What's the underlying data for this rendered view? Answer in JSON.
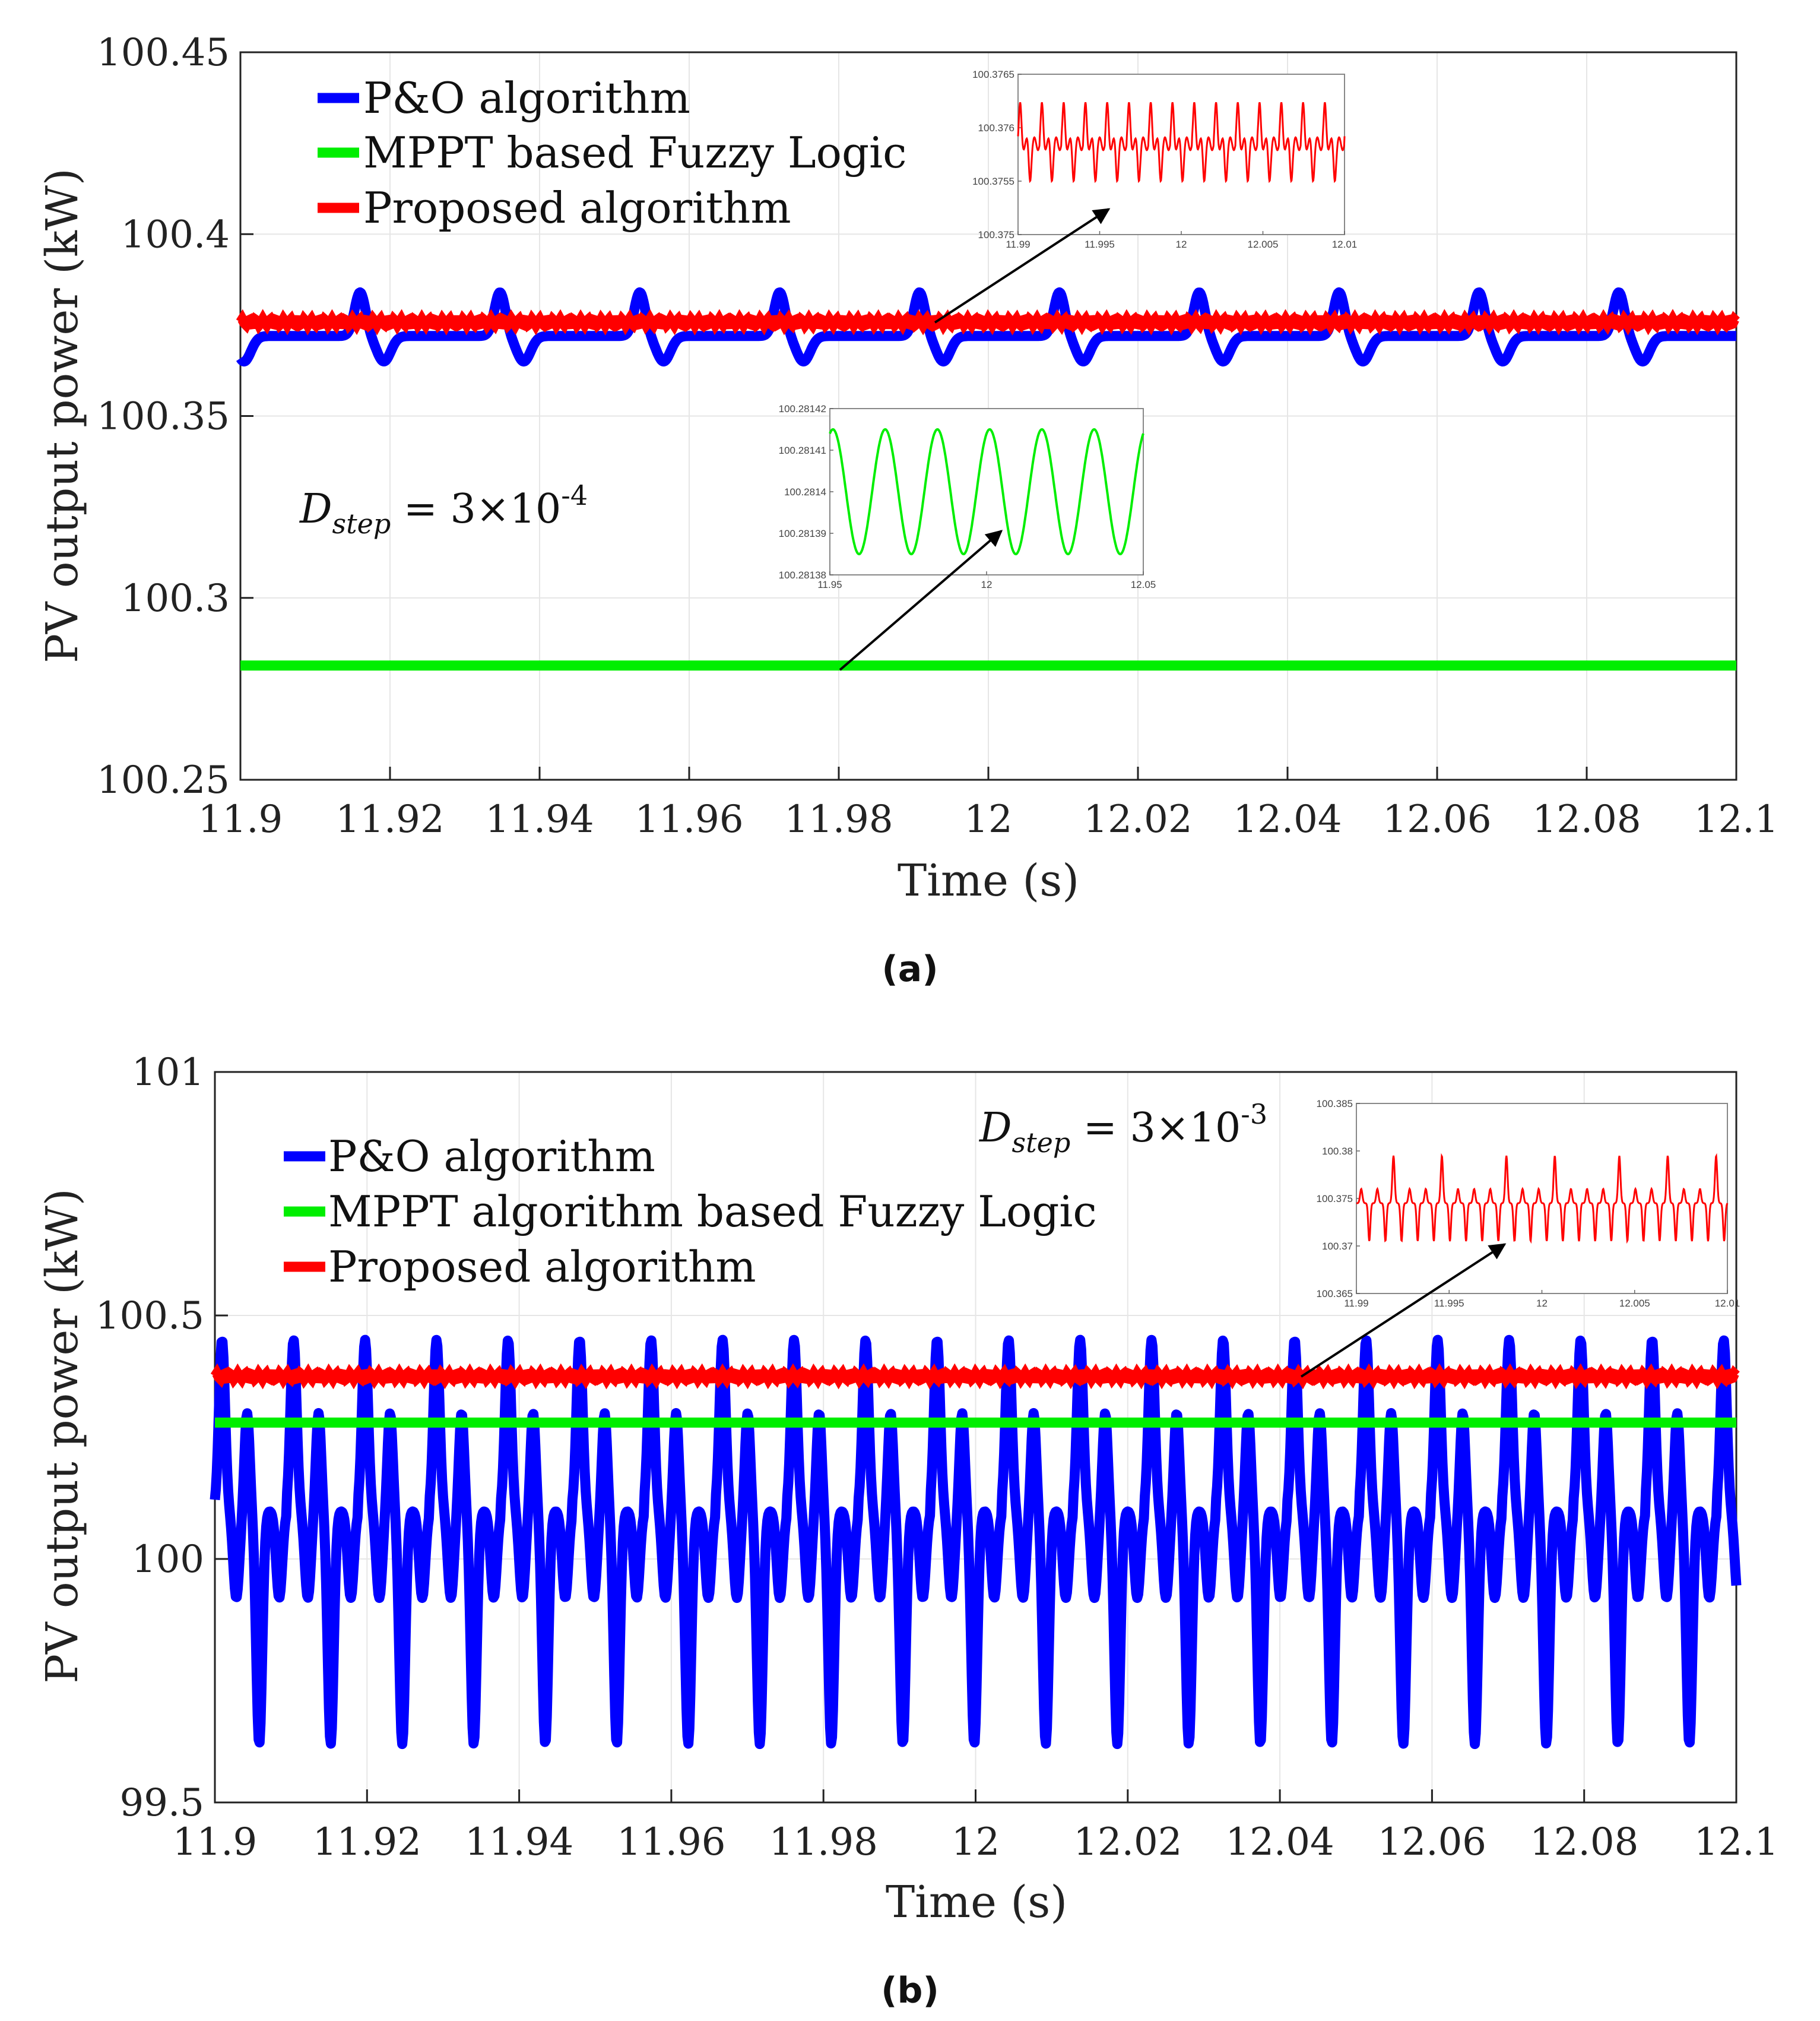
{
  "colors": {
    "po": "#0000ff",
    "fuzzy": "#00ee00",
    "proposed": "#ff0000",
    "grid": "#e6e6e6",
    "axis": "#222222",
    "arrow": "#000000"
  },
  "chart_data": [
    {
      "type": "line",
      "caption": "(a)",
      "xlabel": "Time (s)",
      "ylabel": "PV output power (kW)",
      "xlim": [
        11.9,
        12.1
      ],
      "ylim": [
        100.25,
        100.45
      ],
      "xticks": [
        "11.9",
        "11.92",
        "11.94",
        "11.96",
        "11.98",
        "12",
        "12.02",
        "12.04",
        "12.06",
        "12.08",
        "12.1"
      ],
      "yticks": [
        "100.25",
        "100.3",
        "100.35",
        "100.4",
        "100.45"
      ],
      "grid": true,
      "legend": [
        "P&O algorithm",
        "MPPT based Fuzzy Logic",
        "Proposed algorithm"
      ],
      "legend_position": "top-left",
      "annotation": {
        "symbol": "D",
        "subscript": "step",
        "value": " = 3×10",
        "exponent": "-4"
      },
      "series": [
        {
          "name": "P&O algorithm",
          "baseline": 100.372,
          "valley": 100.365,
          "peak": 100.384,
          "period": 0.0187,
          "first_peak": 11.916
        },
        {
          "name": "MPPT based Fuzzy Logic",
          "value": 100.2814
        },
        {
          "name": "Proposed algorithm",
          "value": 100.3758
        }
      ],
      "insets": [
        {
          "series": "Proposed algorithm",
          "xlim": [
            11.99,
            12.01
          ],
          "ylim": [
            100.375,
            100.3765
          ],
          "xticks": [
            "11.99",
            "11.995",
            "12",
            "12.005",
            "12.01"
          ],
          "yticks": [
            "100.375",
            "100.3755",
            "100.376",
            "100.3765"
          ],
          "arrow_from": [
            11.992,
            100.3758
          ],
          "arrow_to": [
            11.9956,
            100.37555
          ]
        },
        {
          "series": "MPPT based Fuzzy Logic",
          "xlim": [
            11.95,
            12.05
          ],
          "ylim": [
            100.28138,
            100.28142
          ],
          "xticks": [
            "11.95",
            "12",
            "12.05"
          ],
          "yticks": [
            "100.28138",
            "100.28139",
            "100.2814",
            "100.28141",
            "100.28142"
          ],
          "arrow_from": [
            11.98,
            100.2814
          ],
          "arrow_to": [
            12.005,
            100.28139
          ]
        }
      ]
    },
    {
      "type": "line",
      "caption": "(b)",
      "xlabel": "Time (s)",
      "ylabel": "PV output power (kW)",
      "xlim": [
        11.9,
        12.1
      ],
      "ylim": [
        99.5,
        101
      ],
      "xticks": [
        "11.9",
        "11.92",
        "11.94",
        "11.96",
        "11.98",
        "12",
        "12.02",
        "12.04",
        "12.06",
        "12.08",
        "12.1"
      ],
      "yticks": [
        "99.5",
        "100",
        "100.5",
        "101"
      ],
      "grid": true,
      "legend": [
        "P&O algorithm",
        "MPPT algorithm based Fuzzy Logic",
        "Proposed algorithm"
      ],
      "legend_position": "top-left",
      "annotation": {
        "symbol": "D",
        "subscript": "step",
        "value": " = 3×10",
        "exponent": "-3"
      },
      "series": [
        {
          "name": "P&O algorithm",
          "peaks": [
            100.45,
            100.3
          ],
          "valleys": [
            99.62,
            99.92
          ],
          "period": 0.0094
        },
        {
          "name": "MPPT algorithm based Fuzzy Logic",
          "value": 100.28
        },
        {
          "name": "Proposed algorithm",
          "value": 100.375
        }
      ],
      "insets": [
        {
          "series": "Proposed algorithm",
          "xlim": [
            11.99,
            12.01
          ],
          "ylim": [
            100.365,
            100.385
          ],
          "xticks": [
            "11.99",
            "11.995",
            "12",
            "12.005",
            "12.01"
          ],
          "yticks": [
            "100.365",
            "100.37",
            "100.375",
            "100.38",
            "100.385"
          ],
          "arrow_from": [
            12.04,
            100.375
          ],
          "arrow_to": [
            11.997,
            100.37
          ]
        }
      ]
    }
  ]
}
